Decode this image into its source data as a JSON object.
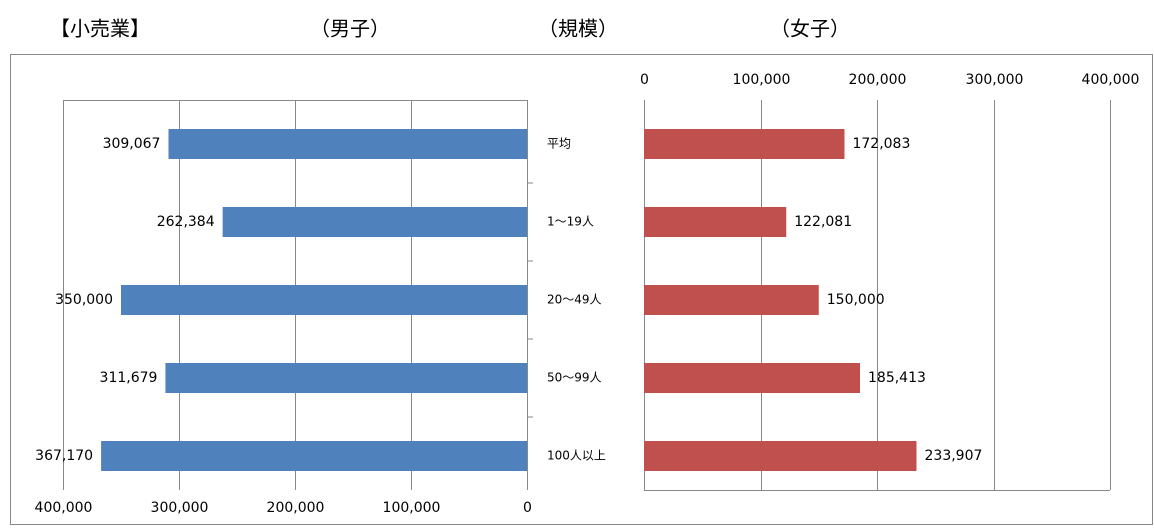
{
  "chart_data": {
    "type": "bar",
    "orientation": "horizontal",
    "title": "【小売業】",
    "category_label": "（規模）",
    "categories": [
      "平均",
      "1～19人",
      "20～49人",
      "50～99人",
      "100人以上"
    ],
    "series": [
      {
        "name": "（男子）",
        "color": "#4f81bd",
        "side": "left",
        "values": [
          309067,
          262384,
          350000,
          311679,
          367170
        ],
        "value_labels": [
          "309,067",
          "262,384",
          "350,000",
          "311,679",
          "367,170"
        ],
        "xlim": [
          0,
          400000
        ],
        "xticks": [
          0,
          {
            "value": 100000,
            "label": "100,000"
          },
          {
            "value": 200000,
            "label": "200,000"
          },
          {
            "value": 300000,
            "label": "300,000"
          },
          {
            "value": 400000,
            "label": "400,000"
          }
        ]
      },
      {
        "name": "（女子）",
        "color": "#c0504d",
        "side": "right",
        "values": [
          172083,
          122081,
          150000,
          185413,
          233907
        ],
        "value_labels": [
          "172,083",
          "122,081",
          "150,000",
          "185,413",
          "233,907"
        ],
        "xlim": [
          0,
          400000
        ],
        "xticks": [
          0,
          {
            "value": 100000,
            "label": "100,000"
          },
          {
            "value": 200000,
            "label": "200,000"
          },
          {
            "value": 300000,
            "label": "300,000"
          },
          {
            "value": 400000,
            "label": "400,000"
          }
        ]
      }
    ],
    "grid": true
  }
}
